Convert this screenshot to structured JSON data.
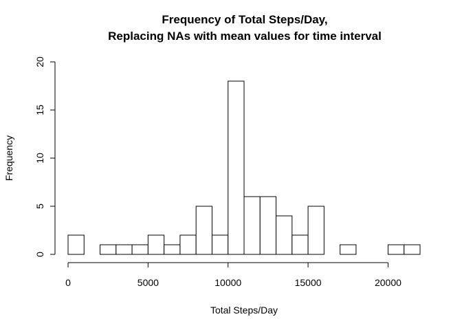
{
  "chart_data": {
    "type": "bar",
    "title_lines": [
      "Frequency of Total Steps/Day,",
      "Replacing NAs with mean values for time interval"
    ],
    "xlabel": "Total Steps/Day",
    "ylabel": "Frequency",
    "bin_edges": [
      0,
      1000,
      2000,
      3000,
      4000,
      5000,
      6000,
      7000,
      8000,
      9000,
      10000,
      11000,
      12000,
      13000,
      14000,
      15000,
      16000,
      17000,
      18000,
      19000,
      20000,
      21000,
      22000
    ],
    "values": [
      2,
      0,
      1,
      1,
      1,
      2,
      1,
      2,
      5,
      2,
      18,
      6,
      6,
      4,
      2,
      5,
      0,
      1,
      0,
      0,
      1,
      1
    ],
    "xlim": [
      0,
      22000
    ],
    "ylim": [
      0,
      20
    ],
    "x_ticks": [
      0,
      5000,
      10000,
      15000,
      20000
    ],
    "x_tick_labels": [
      "0",
      "5000",
      "10000",
      "15000",
      "20000"
    ],
    "y_ticks": [
      0,
      5,
      10,
      15,
      20
    ],
    "y_tick_labels": [
      "0",
      "5",
      "10",
      "15",
      "20"
    ],
    "grid": false,
    "legend": "none"
  }
}
